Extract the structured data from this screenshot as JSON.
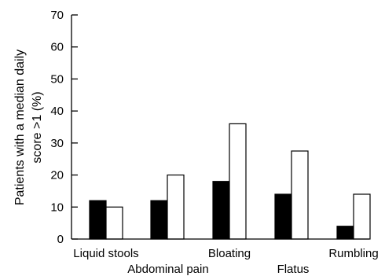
{
  "chart_data": {
    "type": "bar",
    "categories": [
      "Liquid stools",
      "Abdominal pain",
      "Bloating",
      "Flatus",
      "Rumbling"
    ],
    "series": [
      {
        "values": [
          12,
          12,
          18,
          14,
          4
        ],
        "color": "#000000"
      },
      {
        "values": [
          10,
          20,
          36,
          27.5,
          14
        ],
        "color": "#ffffff"
      }
    ],
    "ylabel_line1": "Patients with a median daily",
    "ylabel_line2": "score >1 (%)",
    "ylim": [
      0,
      70
    ],
    "yticks": [
      0,
      10,
      20,
      30,
      40,
      50,
      60,
      70
    ],
    "grid": false,
    "legend": "none"
  }
}
